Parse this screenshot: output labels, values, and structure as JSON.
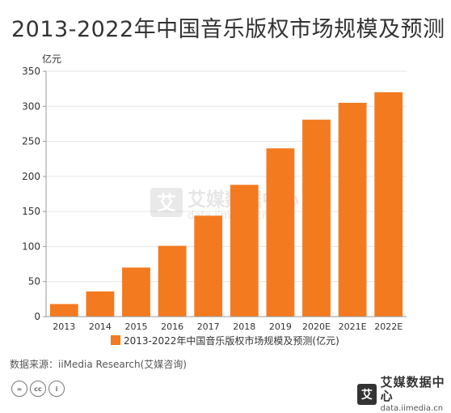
{
  "title": "2013-2022年中国音乐版权市场规模及预测",
  "source": "数据来源：iiMedia Research(艾媒咨询)",
  "watermark": {
    "cn": "艾媒数据中心",
    "en": "data.iimedia.cn",
    "mark": "艾"
  },
  "logo": {
    "cn": "艾媒数据中心",
    "en": "data.iimedia.cn",
    "mark": "艾"
  },
  "license_icons": [
    "=",
    "cc",
    "i"
  ],
  "colors": {
    "bar": "#F47A20",
    "axis": "#999999",
    "grid": "#e6e6e6"
  },
  "chart_data": {
    "type": "bar",
    "categories": [
      "2013",
      "2014",
      "2015",
      "2016",
      "2017",
      "2018",
      "2019",
      "2020E",
      "2021E",
      "2022E"
    ],
    "values": [
      18,
      36,
      70,
      101,
      144,
      188,
      240,
      281,
      305,
      320
    ],
    "ylabel": "亿元",
    "ylim": [
      0,
      350
    ],
    "yticks": [
      0,
      50,
      100,
      150,
      200,
      250,
      300,
      350
    ],
    "grid": true,
    "legend": {
      "label": "2013-2022年中国音乐版权市场规模及预测(亿元)",
      "position": "bottom"
    }
  }
}
